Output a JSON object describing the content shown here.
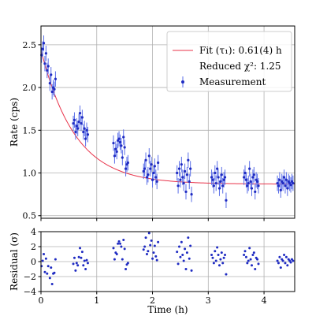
{
  "chart_data": [
    {
      "type": "scatter",
      "panel": "main",
      "xlabel": "",
      "ylabel": "Rate (cps)",
      "xlim": [
        0,
        4.55
      ],
      "ylim": [
        0.47,
        2.72
      ],
      "yticks": [
        0.5,
        1.0,
        1.5,
        2.0,
        2.5
      ],
      "ytick_labels": [
        "0.5",
        "1.0",
        "1.5",
        "2.0",
        "2.5"
      ],
      "xticks": [
        0,
        1,
        2,
        3,
        4
      ],
      "grid": true,
      "legend": {
        "placement": "top-right",
        "entries": [
          {
            "label": "Fit (τ₁): 0.61(4) h",
            "kind": "line",
            "color": "#e8334a"
          },
          {
            "label": "Reduced χ²: 1.25",
            "kind": "none"
          },
          {
            "label": "Measurement",
            "kind": "errorbar",
            "color": "#1f2bc2"
          }
        ]
      },
      "fit": {
        "A": 1.57,
        "tau": 0.61,
        "C": 0.87
      },
      "error_bar": 0.09,
      "series": [
        {
          "x": [
            0.01,
            0.03,
            0.05,
            0.07,
            0.09,
            0.11,
            0.13,
            0.16,
            0.18,
            0.2,
            0.22,
            0.24,
            0.26,
            0.58,
            0.6,
            0.62,
            0.64,
            0.66,
            0.68,
            0.7,
            0.72,
            0.74,
            0.76,
            0.78,
            0.8,
            0.82,
            0.84,
            1.3,
            1.32,
            1.34,
            1.36,
            1.38,
            1.4,
            1.42,
            1.44,
            1.46,
            1.48,
            1.5,
            1.52,
            1.54,
            1.56,
            1.84,
            1.86,
            1.88,
            1.9,
            1.92,
            1.94,
            1.96,
            1.98,
            2.0,
            2.02,
            2.04,
            2.06,
            2.08,
            2.1,
            2.44,
            2.46,
            2.48,
            2.5,
            2.52,
            2.54,
            2.56,
            2.58,
            2.6,
            2.62,
            2.64,
            2.66,
            2.68,
            2.7,
            3.06,
            3.08,
            3.1,
            3.12,
            3.14,
            3.16,
            3.18,
            3.2,
            3.22,
            3.24,
            3.26,
            3.28,
            3.3,
            3.32,
            3.64,
            3.66,
            3.68,
            3.7,
            3.72,
            3.74,
            3.76,
            3.78,
            3.8,
            3.82,
            3.84,
            3.86,
            3.88,
            3.9,
            4.24,
            4.26,
            4.28,
            4.3,
            4.32,
            4.34,
            4.36,
            4.38,
            4.4,
            4.42,
            4.44,
            4.46,
            4.48,
            4.5,
            4.52
          ],
          "y": [
            2.38,
            2.45,
            2.52,
            2.28,
            2.4,
            2.2,
            2.25,
            2.05,
            2.15,
            1.95,
            2.0,
            1.98,
            2.1,
            1.58,
            1.62,
            1.48,
            1.55,
            1.52,
            1.6,
            1.7,
            1.58,
            1.65,
            1.48,
            1.52,
            1.4,
            1.5,
            1.45,
            1.35,
            1.2,
            1.28,
            1.25,
            1.38,
            1.4,
            1.36,
            1.32,
            1.18,
            1.42,
            1.3,
            1.05,
            1.1,
            1.12,
            1.02,
            1.05,
            1.15,
            0.95,
            0.98,
            1.2,
            1.05,
            1.1,
            0.92,
            1.0,
            1.08,
            0.95,
            0.9,
            1.12,
            1.0,
            0.85,
            1.05,
            0.92,
            1.1,
            0.95,
            0.88,
            1.02,
            0.78,
            0.98,
            1.15,
            0.9,
            1.05,
            0.75,
            0.95,
            0.92,
            0.85,
            1.0,
            0.88,
            1.05,
            0.95,
            0.82,
            0.9,
            0.98,
            0.85,
            0.92,
            0.95,
            0.68,
            0.95,
            1.0,
            0.92,
            0.85,
            0.88,
            1.05,
            0.9,
            0.82,
            0.95,
            0.98,
            0.78,
            0.92,
            0.9,
            0.85,
            0.88,
            0.85,
            0.92,
            0.8,
            0.9,
            0.88,
            0.95,
            0.85,
            0.92,
            0.82,
            0.9,
            0.88,
            0.86,
            0.9,
            0.88
          ],
          "name": "Measurement"
        }
      ]
    },
    {
      "type": "scatter",
      "panel": "residual",
      "xlabel": "Time (h)",
      "ylabel": "Residual (σ)",
      "xlim": [
        0,
        4.55
      ],
      "ylim": [
        -4,
        4
      ],
      "yticks": [
        -4,
        -2,
        0,
        2,
        4
      ],
      "ytick_labels": [
        "−4",
        "−2",
        "0",
        "2",
        "4"
      ],
      "xticks": [
        0,
        1,
        2,
        3,
        4
      ],
      "xtick_labels": [
        "0",
        "1",
        "2",
        "3",
        "4"
      ],
      "grid": true,
      "series": [
        {
          "x": [
            0.01,
            0.03,
            0.05,
            0.07,
            0.09,
            0.11,
            0.13,
            0.16,
            0.18,
            0.2,
            0.22,
            0.24,
            0.26,
            0.58,
            0.6,
            0.62,
            0.64,
            0.66,
            0.68,
            0.7,
            0.72,
            0.74,
            0.76,
            0.78,
            0.8,
            0.82,
            0.84,
            1.3,
            1.32,
            1.34,
            1.36,
            1.38,
            1.4,
            1.42,
            1.44,
            1.46,
            1.48,
            1.5,
            1.52,
            1.54,
            1.56,
            1.84,
            1.86,
            1.88,
            1.9,
            1.92,
            1.94,
            1.96,
            1.98,
            2.0,
            2.02,
            2.04,
            2.06,
            2.08,
            2.1,
            2.44,
            2.46,
            2.48,
            2.5,
            2.52,
            2.54,
            2.56,
            2.58,
            2.6,
            2.62,
            2.64,
            2.66,
            2.68,
            2.7,
            3.06,
            3.08,
            3.1,
            3.12,
            3.14,
            3.16,
            3.18,
            3.2,
            3.22,
            3.24,
            3.26,
            3.28,
            3.3,
            3.32,
            3.64,
            3.66,
            3.68,
            3.7,
            3.72,
            3.74,
            3.76,
            3.78,
            3.8,
            3.82,
            3.84,
            3.86,
            3.88,
            3.9,
            4.24,
            4.26,
            4.28,
            4.3,
            4.32,
            4.34,
            4.36,
            4.38,
            4.4,
            4.42,
            4.44,
            4.46,
            4.48,
            4.5,
            4.52
          ],
          "y": [
            -0.6,
            0.1,
            1.0,
            -1.4,
            0.4,
            -1.6,
            -0.6,
            -2.2,
            -0.8,
            -3.0,
            -1.6,
            -1.5,
            0.3,
            -0.3,
            0.5,
            -1.2,
            -0.2,
            -0.5,
            0.6,
            1.8,
            0.5,
            1.3,
            -0.5,
            0.1,
            -1.0,
            0.2,
            -0.2,
            1.8,
            0.3,
            1.2,
            1.0,
            2.4,
            2.7,
            2.4,
            2.0,
            0.3,
            2.9,
            1.7,
            -1.0,
            -0.4,
            -0.2,
            1.6,
            2.0,
            3.2,
            1.0,
            1.4,
            3.8,
            2.2,
            2.8,
            0.4,
            1.2,
            2.1,
            0.7,
            0.2,
            2.6,
            1.3,
            -0.3,
            2.0,
            0.6,
            2.6,
            0.9,
            0.1,
            1.7,
            -1.0,
            1.2,
            3.2,
            0.4,
            2.1,
            -1.2,
            0.9,
            0.5,
            -0.2,
            1.4,
            0.1,
            1.9,
            0.9,
            -0.5,
            0.3,
            1.2,
            -0.2,
            0.5,
            0.9,
            -1.7,
            0.9,
            1.4,
            0.6,
            -0.2,
            0.1,
            1.8,
            0.3,
            -0.5,
            0.9,
            1.2,
            -1.0,
            0.5,
            0.3,
            -0.3,
            0.1,
            -0.2,
            0.6,
            -0.8,
            0.3,
            0.1,
            0.9,
            -0.2,
            0.6,
            -0.5,
            0.3,
            0.1,
            -0.1,
            0.3,
            0.1
          ]
        }
      ]
    }
  ],
  "legend": {
    "fit_label": "Fit (τ₁): 0.61(4) h",
    "chi_label": "Reduced χ²: 1.25",
    "measurement_label": "Measurement"
  },
  "colors": {
    "data": "#1f2bc2",
    "errorbar": "#5a6ee8",
    "fit": "#e8334a",
    "grid": "#b0b0b0",
    "axis": "#000000"
  }
}
